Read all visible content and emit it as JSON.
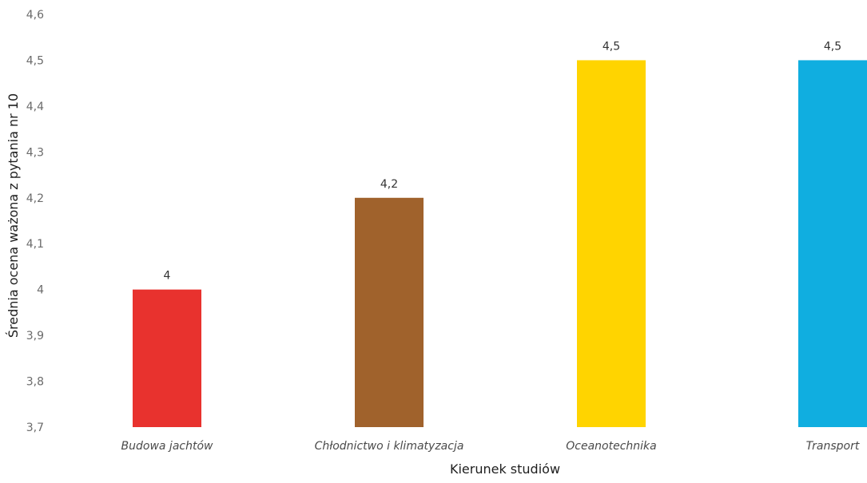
{
  "chart_data": {
    "type": "bar",
    "categories": [
      "Budowa jachtów",
      "Chłodnictwo i klimatyzacja",
      "Oceanotechnika",
      "Transport"
    ],
    "values": [
      4,
      4.2,
      4.5,
      4.5
    ],
    "value_labels": [
      "4",
      "4,2",
      "4,5",
      "4,5"
    ],
    "colors": [
      "#e8322e",
      "#a0622c",
      "#ffd400",
      "#10aee0"
    ],
    "xlabel": "Kierunek studiów",
    "ylabel": "Średnia ocena ważona z pytania nr 10",
    "ylim": [
      3.7,
      4.6
    ],
    "yticks": [
      3.7,
      3.8,
      3.9,
      4,
      4.1,
      4.2,
      4.3,
      4.4,
      4.5,
      4.6
    ],
    "ytick_labels": [
      "3,7",
      "3,8",
      "3,9",
      "4",
      "4,1",
      "4,2",
      "4,3",
      "4,4",
      "4,5",
      "4,6"
    ],
    "grid": false,
    "legend": "none"
  }
}
